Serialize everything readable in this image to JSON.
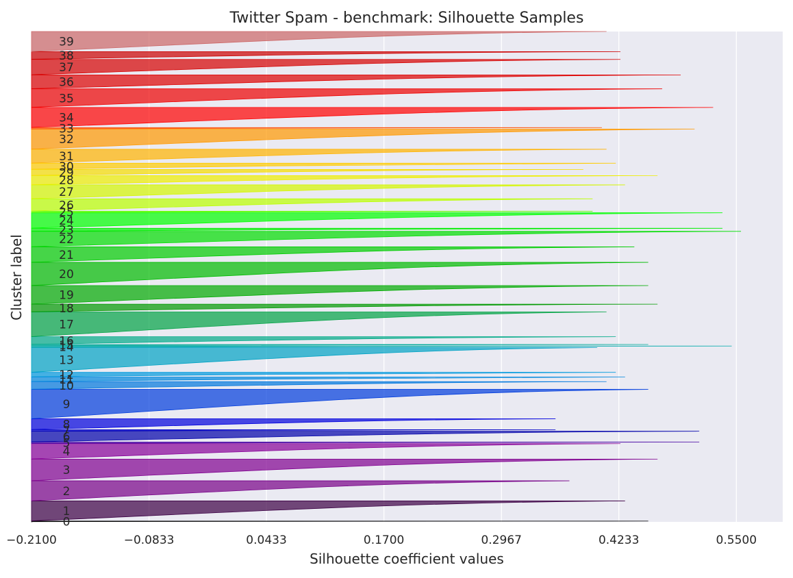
{
  "chart_data": {
    "type": "silhouette",
    "title": "Twitter Spam - benchmark: Silhouette Samples",
    "xlabel": "Silhouette coefficient values",
    "ylabel": "Cluster label",
    "xlim": [
      -0.21,
      0.6
    ],
    "x_ticks": [
      -0.21,
      -0.0833,
      0.0433,
      0.17,
      0.2967,
      0.4233,
      0.55
    ],
    "x_tick_labels": [
      "−0.2100",
      "−0.0833",
      "0.0433",
      "0.1700",
      "0.2967",
      "0.4233",
      "0.5500"
    ],
    "grid": true,
    "background": "#eaeaf2",
    "colormap": "nipy_spectral",
    "clusters": [
      {
        "label": "0",
        "size": 1,
        "max": 0.455
      },
      {
        "label": "1",
        "size": 26,
        "max": 0.43
      },
      {
        "label": "2",
        "size": 26,
        "max": 0.37
      },
      {
        "label": "3",
        "size": 28,
        "max": 0.465
      },
      {
        "label": "4",
        "size": 20,
        "max": 0.425
      },
      {
        "label": "5",
        "size": 2,
        "max": 0.51
      },
      {
        "label": "6",
        "size": 14,
        "max": 0.51
      },
      {
        "label": "7",
        "size": 2,
        "max": 0.355
      },
      {
        "label": "8",
        "size": 14,
        "max": 0.355
      },
      {
        "label": "9",
        "size": 38,
        "max": 0.455
      },
      {
        "label": "10",
        "size": 10,
        "max": 0.41
      },
      {
        "label": "11",
        "size": 6,
        "max": 0.43
      },
      {
        "label": "12",
        "size": 6,
        "max": 0.42
      },
      {
        "label": "13",
        "size": 32,
        "max": 0.4
      },
      {
        "label": "14",
        "size": 2,
        "max": 0.545
      },
      {
        "label": "15",
        "size": 2,
        "max": 0.455
      },
      {
        "label": "16",
        "size": 10,
        "max": 0.42
      },
      {
        "label": "17",
        "size": 32,
        "max": 0.41
      },
      {
        "label": "18",
        "size": 10,
        "max": 0.465
      },
      {
        "label": "19",
        "size": 24,
        "max": 0.455
      },
      {
        "label": "20",
        "size": 30,
        "max": 0.455
      },
      {
        "label": "21",
        "size": 20,
        "max": 0.44
      },
      {
        "label": "22",
        "size": 20,
        "max": 0.555
      },
      {
        "label": "23",
        "size": 4,
        "max": 0.535
      },
      {
        "label": "24",
        "size": 20,
        "max": 0.535
      },
      {
        "label": "25",
        "size": 2,
        "max": 0.395
      },
      {
        "label": "26",
        "size": 16,
        "max": 0.395
      },
      {
        "label": "27",
        "size": 18,
        "max": 0.43
      },
      {
        "label": "28",
        "size": 12,
        "max": 0.465
      },
      {
        "label": "29",
        "size": 8,
        "max": 0.385
      },
      {
        "label": "30",
        "size": 8,
        "max": 0.42
      },
      {
        "label": "31",
        "size": 18,
        "max": 0.41
      },
      {
        "label": "32",
        "size": 26,
        "max": 0.505
      },
      {
        "label": "33",
        "size": 2,
        "max": 0.405
      },
      {
        "label": "34",
        "size": 26,
        "max": 0.525
      },
      {
        "label": "35",
        "size": 24,
        "max": 0.47
      },
      {
        "label": "36",
        "size": 18,
        "max": 0.49
      },
      {
        "label": "37",
        "size": 20,
        "max": 0.425
      },
      {
        "label": "38",
        "size": 10,
        "max": 0.425
      },
      {
        "label": "39",
        "size": 26,
        "max": 0.41
      }
    ]
  }
}
